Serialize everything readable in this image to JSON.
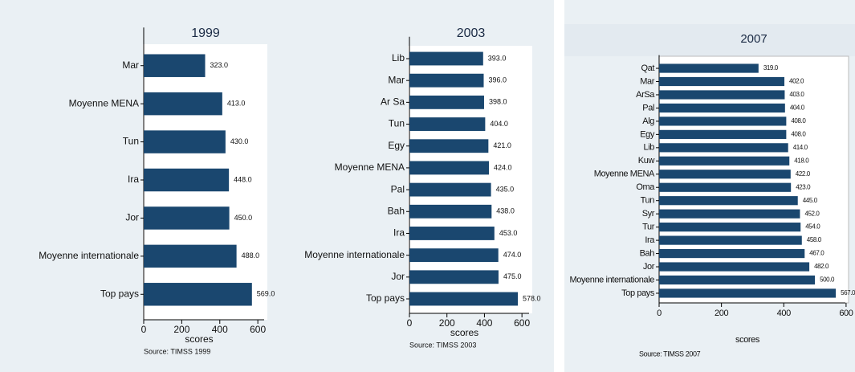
{
  "chart_data": [
    {
      "type": "bar",
      "orientation": "horizontal",
      "title": "1999",
      "categories": [
        "Mar",
        "Moyenne MENA",
        "Tun",
        "Ira",
        "Jor",
        "Moyenne internationale",
        "Top pays"
      ],
      "values": [
        323,
        413,
        430,
        448,
        450,
        488,
        569
      ],
      "value_labels": [
        "323.0",
        "413.0",
        "430.0",
        "448.0",
        "450.0",
        "488.0",
        "569.0"
      ],
      "color": "#1a476f",
      "xlim": [
        0,
        650
      ],
      "xticks": [
        0,
        200,
        400,
        600
      ],
      "xlabel": "scores",
      "note": "Source: TIMSS 1999"
    },
    {
      "type": "bar",
      "orientation": "horizontal",
      "title": "2003",
      "categories": [
        "Lib",
        "Mar",
        "Ar Sa",
        "Tun",
        "Egy",
        "Moyenne MENA",
        "Pal",
        "Bah",
        "Ira",
        "Moyenne internationale",
        "Jor",
        "Top pays"
      ],
      "values": [
        393,
        396,
        398,
        404,
        421,
        424,
        435,
        438,
        453,
        474,
        475,
        578
      ],
      "value_labels": [
        "393.0",
        "396.0",
        "398.0",
        "404.0",
        "421.0",
        "424.0",
        "435.0",
        "438.0",
        "453.0",
        "474.0",
        "475.0",
        "578.0"
      ],
      "color": "#1a476f",
      "xlim": [
        0,
        655
      ],
      "xticks": [
        0,
        200,
        400,
        600
      ],
      "xlabel": "scores",
      "note": "Source: TIMSS 2003"
    },
    {
      "type": "bar",
      "orientation": "horizontal",
      "title": "2007",
      "categories": [
        "Qat",
        "Mar",
        "ArSa",
        "Pal",
        "Alg",
        "Egy",
        "Lib",
        "Kuw",
        "Moyenne MENA",
        "Oma",
        "Tun",
        "Syr",
        "Tur",
        "Ira",
        "Bah",
        "Jor",
        "Moyenne internationale",
        "Top pays"
      ],
      "values": [
        319,
        402,
        403,
        404,
        408,
        408,
        414,
        418,
        422,
        423,
        445,
        452,
        454,
        458,
        467,
        482,
        500,
        567
      ],
      "value_labels": [
        "319.0",
        "402.0",
        "403.0",
        "404.0",
        "408.0",
        "408.0",
        "414.0",
        "418.0",
        "422.0",
        "423.0",
        "445.0",
        "452.0",
        "454.0",
        "458.0",
        "467.0",
        "482.0",
        "500.0",
        "567.0"
      ],
      "color": "#1a476f",
      "xlim": [
        0,
        608
      ],
      "xticks": [
        0,
        200,
        400,
        600
      ],
      "xlabel": "scores",
      "note": "Source: TIMSS 2007"
    }
  ]
}
